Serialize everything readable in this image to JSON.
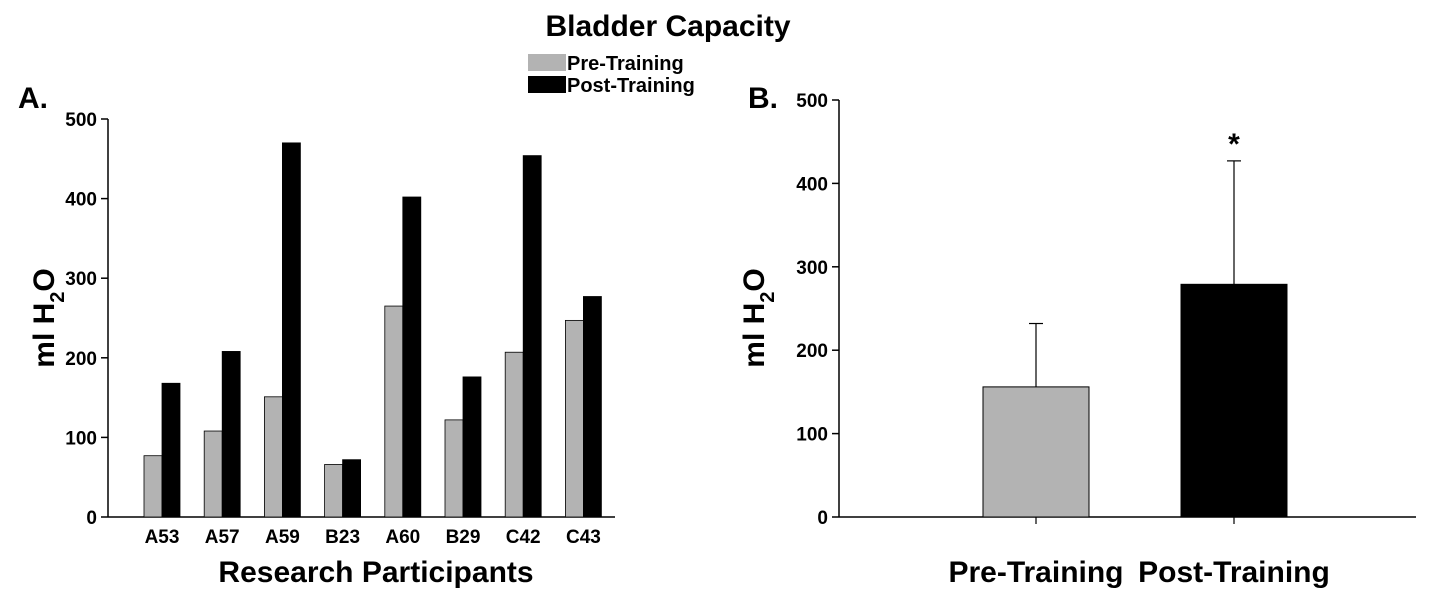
{
  "figure": {
    "title": "Bladder Capacity",
    "legend": [
      {
        "label": "Pre-Training",
        "color": "#b3b3b3"
      },
      {
        "label": "Post-Training",
        "color": "#000000"
      }
    ]
  },
  "chart_data": [
    {
      "panel": "A.",
      "type": "bar",
      "xlabel": "Research Participants",
      "ylabel_main": "ml H",
      "ylabel_sub": "2",
      "ylabel_tail": "O",
      "ylim": [
        0,
        500
      ],
      "yticks": [
        "0",
        "100",
        "200",
        "300",
        "400",
        "500"
      ],
      "categories": [
        "A53",
        "A57",
        "A59",
        "B23",
        "A60",
        "B29",
        "C42",
        "C43"
      ],
      "series": [
        {
          "name": "Pre-Training",
          "color": "#b3b3b3",
          "values": [
            77,
            108,
            151,
            66,
            265,
            122,
            207,
            247
          ]
        },
        {
          "name": "Post-Training",
          "color": "#000000",
          "values": [
            168,
            208,
            470,
            72,
            402,
            176,
            454,
            277
          ]
        }
      ],
      "grid": false
    },
    {
      "panel": "B.",
      "type": "bar",
      "xlabel": "",
      "ylabel_main": "ml H",
      "ylabel_sub": "2",
      "ylabel_tail": "O",
      "ylim": [
        0,
        500
      ],
      "yticks": [
        "0",
        "100",
        "200",
        "300",
        "400",
        "500"
      ],
      "categories": [
        "Pre-Training",
        "Post-Training"
      ],
      "values": [
        156,
        279
      ],
      "error_upper": [
        232,
        427
      ],
      "colors": [
        "#b3b3b3",
        "#000000"
      ],
      "annotation": "*",
      "grid": false
    }
  ]
}
